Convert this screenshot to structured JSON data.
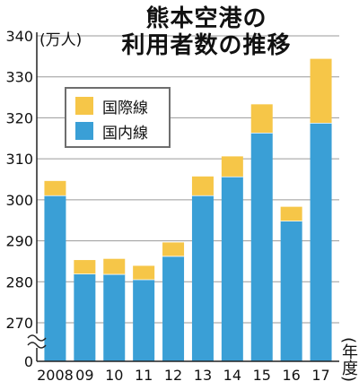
{
  "chart_data": {
    "type": "bar",
    "stacked": true,
    "title": "熊本空港の利用者数の推移",
    "title_lines": [
      "熊本空港の",
      "利用者数の推移"
    ],
    "ylabel": "(万人)",
    "xlabel": "(年度)",
    "ylim": [
      270,
      340
    ],
    "y_axis_break": true,
    "yticks": [
      "340",
      "330",
      "320",
      "310",
      "300",
      "290",
      "280",
      "270",
      "0"
    ],
    "categories": [
      "2008",
      "09",
      "10",
      "11",
      "12",
      "13",
      "14",
      "15",
      "16",
      "17"
    ],
    "series": [
      {
        "name": "国内線",
        "color": "#3a9fd6",
        "values": [
          301.0,
          281.9,
          281.8,
          280.5,
          286.2,
          301.0,
          305.6,
          316.3,
          294.8,
          318.7
        ]
      },
      {
        "name": "国際線",
        "color": "#f6c648",
        "values": [
          3.6,
          3.4,
          3.8,
          3.4,
          3.4,
          4.7,
          5.0,
          7.0,
          3.5,
          15.7
        ]
      }
    ],
    "legend": {
      "position": "top-left",
      "items": [
        "国際線",
        "国内線"
      ]
    },
    "grid": true
  },
  "labels": {
    "unit": "(万人)",
    "xunit": "(年度)",
    "legend_intl": "国際線",
    "legend_dom": "国内線"
  },
  "colors": {
    "domestic": "#3a9fd6",
    "international": "#f6c648",
    "grid": "#9a9a9a"
  }
}
